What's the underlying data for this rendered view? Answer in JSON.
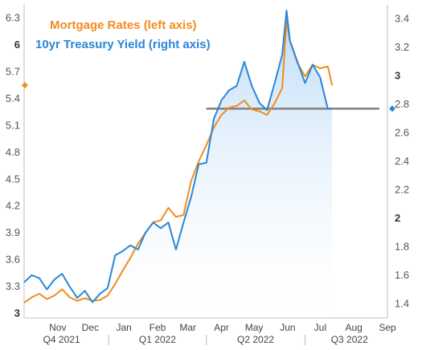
{
  "chart_data": {
    "type": "line",
    "legend": [
      {
        "label": "Mortgage Rates (left axis)",
        "color": "#f28c1e"
      },
      {
        "label": "10yr Treasury Yield (right axis)",
        "color": "#2b86d6"
      }
    ],
    "left_axis": {
      "ylim": [
        2.95,
        6.45
      ],
      "ticks": [
        "3",
        "3.3",
        "3.6",
        "3.9",
        "4.2",
        "4.5",
        "4.8",
        "5.1",
        "5.4",
        "5.7",
        "6",
        "6.3"
      ],
      "bold_ticks": [
        "3",
        "6"
      ]
    },
    "right_axis": {
      "ylim": [
        1.3,
        3.5
      ],
      "ticks": [
        "1.4",
        "1.6",
        "1.8",
        "2",
        "2.2",
        "2.4",
        "2.6",
        "2.8",
        "3",
        "3.2",
        "3.4"
      ],
      "bold_ticks": [
        "2",
        "3"
      ]
    },
    "x_axis": {
      "months": [
        "Nov",
        "Dec",
        "Jan",
        "Feb",
        "Mar",
        "Apr",
        "May",
        "Jun",
        "Jul",
        "Aug",
        "Sep"
      ],
      "quarters": [
        "Q4 2021",
        "Q1 2022",
        "Q2 2022",
        "Q3 2022"
      ],
      "xlim": [
        "2021-10-15",
        "2022-09-15"
      ]
    },
    "reference_level": 2.77,
    "current_values": {
      "mortgage": 5.55,
      "treasury": 2.77
    },
    "series": [
      {
        "name": "Mortgage Rates (left axis)",
        "axis": "left",
        "color": "#f28c1e",
        "x": [
          "2021-10-15",
          "2021-10-22",
          "2021-10-29",
          "2021-11-05",
          "2021-11-12",
          "2021-11-19",
          "2021-11-26",
          "2021-12-03",
          "2021-12-10",
          "2021-12-17",
          "2021-12-24",
          "2021-12-31",
          "2022-01-07",
          "2022-01-14",
          "2022-01-21",
          "2022-01-28",
          "2022-02-04",
          "2022-02-11",
          "2022-02-18",
          "2022-02-25",
          "2022-03-04",
          "2022-03-11",
          "2022-03-18",
          "2022-03-25",
          "2022-04-01",
          "2022-04-08",
          "2022-04-15",
          "2022-04-22",
          "2022-04-29",
          "2022-05-06",
          "2022-05-13",
          "2022-05-20",
          "2022-05-27",
          "2022-06-03",
          "2022-06-10",
          "2022-06-14",
          "2022-06-17",
          "2022-06-24",
          "2022-07-01",
          "2022-07-08",
          "2022-07-15",
          "2022-07-22",
          "2022-07-26"
        ],
        "values": [
          3.12,
          3.18,
          3.22,
          3.16,
          3.2,
          3.27,
          3.18,
          3.14,
          3.17,
          3.14,
          3.15,
          3.2,
          3.33,
          3.48,
          3.62,
          3.78,
          3.9,
          4.02,
          4.04,
          4.18,
          4.08,
          4.1,
          4.48,
          4.7,
          4.88,
          5.08,
          5.22,
          5.3,
          5.32,
          5.38,
          5.28,
          5.26,
          5.22,
          5.35,
          5.52,
          6.28,
          6.05,
          5.8,
          5.65,
          5.78,
          5.74,
          5.76,
          5.55
        ]
      },
      {
        "name": "10yr Treasury Yield (right axis)",
        "axis": "right",
        "color": "#2b86d6",
        "x": [
          "2021-10-15",
          "2021-10-22",
          "2021-10-29",
          "2021-11-05",
          "2021-11-12",
          "2021-11-19",
          "2021-11-26",
          "2021-12-03",
          "2021-12-10",
          "2021-12-17",
          "2021-12-24",
          "2021-12-31",
          "2022-01-07",
          "2022-01-14",
          "2022-01-21",
          "2022-01-28",
          "2022-02-04",
          "2022-02-11",
          "2022-02-18",
          "2022-02-25",
          "2022-03-04",
          "2022-03-11",
          "2022-03-18",
          "2022-03-25",
          "2022-04-01",
          "2022-04-08",
          "2022-04-15",
          "2022-04-22",
          "2022-04-29",
          "2022-05-06",
          "2022-05-13",
          "2022-05-20",
          "2022-05-27",
          "2022-06-03",
          "2022-06-10",
          "2022-06-14",
          "2022-06-17",
          "2022-06-24",
          "2022-07-01",
          "2022-07-08",
          "2022-07-15",
          "2022-07-22",
          "2022-07-26"
        ],
        "values": [
          1.55,
          1.6,
          1.58,
          1.5,
          1.57,
          1.61,
          1.52,
          1.44,
          1.49,
          1.41,
          1.47,
          1.51,
          1.74,
          1.77,
          1.81,
          1.78,
          1.9,
          1.97,
          1.93,
          1.97,
          1.78,
          1.97,
          2.15,
          2.38,
          2.39,
          2.7,
          2.83,
          2.9,
          2.93,
          3.1,
          2.93,
          2.81,
          2.76,
          2.95,
          3.15,
          3.46,
          3.25,
          3.1,
          2.95,
          3.08,
          2.99,
          2.77,
          2.77
        ]
      }
    ]
  }
}
